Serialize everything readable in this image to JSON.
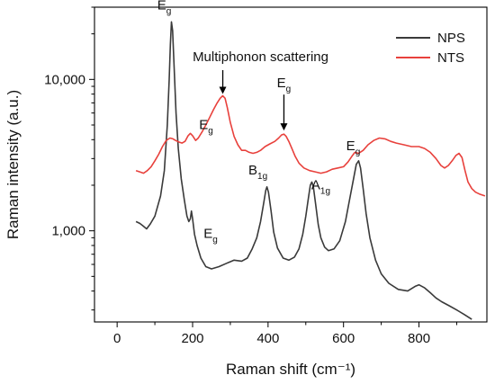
{
  "chart_data": {
    "type": "line",
    "xlabel": "Raman shift (cm⁻¹)",
    "ylabel": "Raman intensity (a.u.)",
    "xlim": [
      -60,
      980
    ],
    "ylim": [
      250,
      30000
    ],
    "y_scale": "log",
    "x_ticks": [
      0,
      200,
      400,
      600,
      800
    ],
    "x_tick_labels": [
      "0",
      "200",
      "400",
      "600",
      "800"
    ],
    "y_ticks": [
      1000,
      10000
    ],
    "y_tick_labels": [
      "1,000",
      "10,000"
    ],
    "grid": false,
    "legend_position": "top-right",
    "series": [
      {
        "name": "NPS",
        "color": "#3a3a3a",
        "points": [
          [
            50,
            1150
          ],
          [
            60,
            1120
          ],
          [
            68,
            1080
          ],
          [
            78,
            1030
          ],
          [
            88,
            1110
          ],
          [
            100,
            1250
          ],
          [
            115,
            1700
          ],
          [
            125,
            2500
          ],
          [
            133,
            5000
          ],
          [
            138,
            10000
          ],
          [
            141,
            17000
          ],
          [
            144,
            24000
          ],
          [
            147,
            21000
          ],
          [
            151,
            12000
          ],
          [
            156,
            6000
          ],
          [
            162,
            3500
          ],
          [
            170,
            2200
          ],
          [
            178,
            1600
          ],
          [
            185,
            1250
          ],
          [
            190,
            1150
          ],
          [
            194,
            1200
          ],
          [
            197,
            1350
          ],
          [
            200,
            1200
          ],
          [
            205,
            950
          ],
          [
            212,
            800
          ],
          [
            222,
            660
          ],
          [
            235,
            580
          ],
          [
            250,
            560
          ],
          [
            270,
            580
          ],
          [
            290,
            610
          ],
          [
            310,
            640
          ],
          [
            330,
            630
          ],
          [
            345,
            660
          ],
          [
            358,
            760
          ],
          [
            370,
            900
          ],
          [
            380,
            1150
          ],
          [
            388,
            1500
          ],
          [
            394,
            1850
          ],
          [
            397,
            1950
          ],
          [
            401,
            1800
          ],
          [
            408,
            1350
          ],
          [
            415,
            980
          ],
          [
            425,
            770
          ],
          [
            440,
            660
          ],
          [
            455,
            640
          ],
          [
            470,
            670
          ],
          [
            482,
            760
          ],
          [
            492,
            950
          ],
          [
            500,
            1250
          ],
          [
            507,
            1650
          ],
          [
            512,
            2000
          ],
          [
            516,
            2100
          ],
          [
            520,
            1950
          ],
          [
            526,
            1500
          ],
          [
            533,
            1100
          ],
          [
            540,
            900
          ],
          [
            550,
            780
          ],
          [
            560,
            740
          ],
          [
            575,
            760
          ],
          [
            590,
            860
          ],
          [
            605,
            1150
          ],
          [
            618,
            1700
          ],
          [
            628,
            2300
          ],
          [
            634,
            2750
          ],
          [
            640,
            2900
          ],
          [
            645,
            2600
          ],
          [
            652,
            1900
          ],
          [
            660,
            1300
          ],
          [
            670,
            900
          ],
          [
            685,
            640
          ],
          [
            700,
            520
          ],
          [
            720,
            450
          ],
          [
            745,
            410
          ],
          [
            770,
            400
          ],
          [
            790,
            430
          ],
          [
            800,
            440
          ],
          [
            815,
            420
          ],
          [
            830,
            390
          ],
          [
            845,
            360
          ],
          [
            860,
            340
          ],
          [
            880,
            320
          ],
          [
            900,
            300
          ],
          [
            920,
            280
          ],
          [
            940,
            260
          ]
        ]
      },
      {
        "name": "NTS",
        "color": "#e8413c",
        "points": [
          [
            50,
            2500
          ],
          [
            60,
            2450
          ],
          [
            70,
            2400
          ],
          [
            80,
            2500
          ],
          [
            90,
            2650
          ],
          [
            100,
            2900
          ],
          [
            110,
            3200
          ],
          [
            120,
            3600
          ],
          [
            130,
            3950
          ],
          [
            140,
            4100
          ],
          [
            148,
            4050
          ],
          [
            155,
            3950
          ],
          [
            165,
            3850
          ],
          [
            172,
            3800
          ],
          [
            180,
            3900
          ],
          [
            188,
            4250
          ],
          [
            194,
            4400
          ],
          [
            200,
            4250
          ],
          [
            208,
            3950
          ],
          [
            215,
            4100
          ],
          [
            225,
            4500
          ],
          [
            235,
            5000
          ],
          [
            245,
            5600
          ],
          [
            255,
            6300
          ],
          [
            265,
            7000
          ],
          [
            273,
            7500
          ],
          [
            280,
            7800
          ],
          [
            286,
            7500
          ],
          [
            292,
            6500
          ],
          [
            300,
            5200
          ],
          [
            310,
            4200
          ],
          [
            320,
            3700
          ],
          [
            330,
            3400
          ],
          [
            340,
            3400
          ],
          [
            350,
            3300
          ],
          [
            360,
            3250
          ],
          [
            370,
            3300
          ],
          [
            380,
            3400
          ],
          [
            392,
            3600
          ],
          [
            405,
            3750
          ],
          [
            418,
            3900
          ],
          [
            428,
            4100
          ],
          [
            436,
            4300
          ],
          [
            442,
            4350
          ],
          [
            448,
            4200
          ],
          [
            455,
            3900
          ],
          [
            463,
            3500
          ],
          [
            472,
            3100
          ],
          [
            482,
            2800
          ],
          [
            495,
            2600
          ],
          [
            510,
            2500
          ],
          [
            525,
            2450
          ],
          [
            540,
            2400
          ],
          [
            555,
            2450
          ],
          [
            570,
            2550
          ],
          [
            585,
            2600
          ],
          [
            600,
            2650
          ],
          [
            612,
            2850
          ],
          [
            622,
            3100
          ],
          [
            630,
            3300
          ],
          [
            640,
            3250
          ],
          [
            652,
            3400
          ],
          [
            665,
            3700
          ],
          [
            680,
            3950
          ],
          [
            695,
            4100
          ],
          [
            710,
            4050
          ],
          [
            725,
            3900
          ],
          [
            740,
            3800
          ],
          [
            760,
            3700
          ],
          [
            780,
            3600
          ],
          [
            800,
            3600
          ],
          [
            815,
            3500
          ],
          [
            830,
            3300
          ],
          [
            845,
            3000
          ],
          [
            858,
            2700
          ],
          [
            868,
            2600
          ],
          [
            878,
            2700
          ],
          [
            888,
            2900
          ],
          [
            898,
            3150
          ],
          [
            906,
            3250
          ],
          [
            914,
            3050
          ],
          [
            922,
            2500
          ],
          [
            930,
            2100
          ],
          [
            940,
            1900
          ],
          [
            950,
            1800
          ],
          [
            960,
            1750
          ],
          [
            975,
            1700
          ]
        ]
      }
    ],
    "annotations": [
      {
        "main": "E",
        "sub": "g",
        "x": 144,
        "y": 24000
      },
      {
        "main": "E",
        "sub": "g",
        "x": 200,
        "y": 4400
      },
      {
        "main": "E",
        "sub": "g",
        "x": 200,
        "y": 1350
      },
      {
        "main": "B",
        "sub": "1g",
        "x": 397,
        "y": 1950
      },
      {
        "main": "A",
        "sub": "1g",
        "x": 516,
        "y": 2100
      },
      {
        "main": "E",
        "sub": "g",
        "x": 640,
        "y": 2900
      },
      {
        "main": "E",
        "sub": "g",
        "x": 442,
        "y": 4350
      }
    ],
    "callout": {
      "text": "Multiphonon scattering",
      "x": 280,
      "y": 7800
    }
  }
}
